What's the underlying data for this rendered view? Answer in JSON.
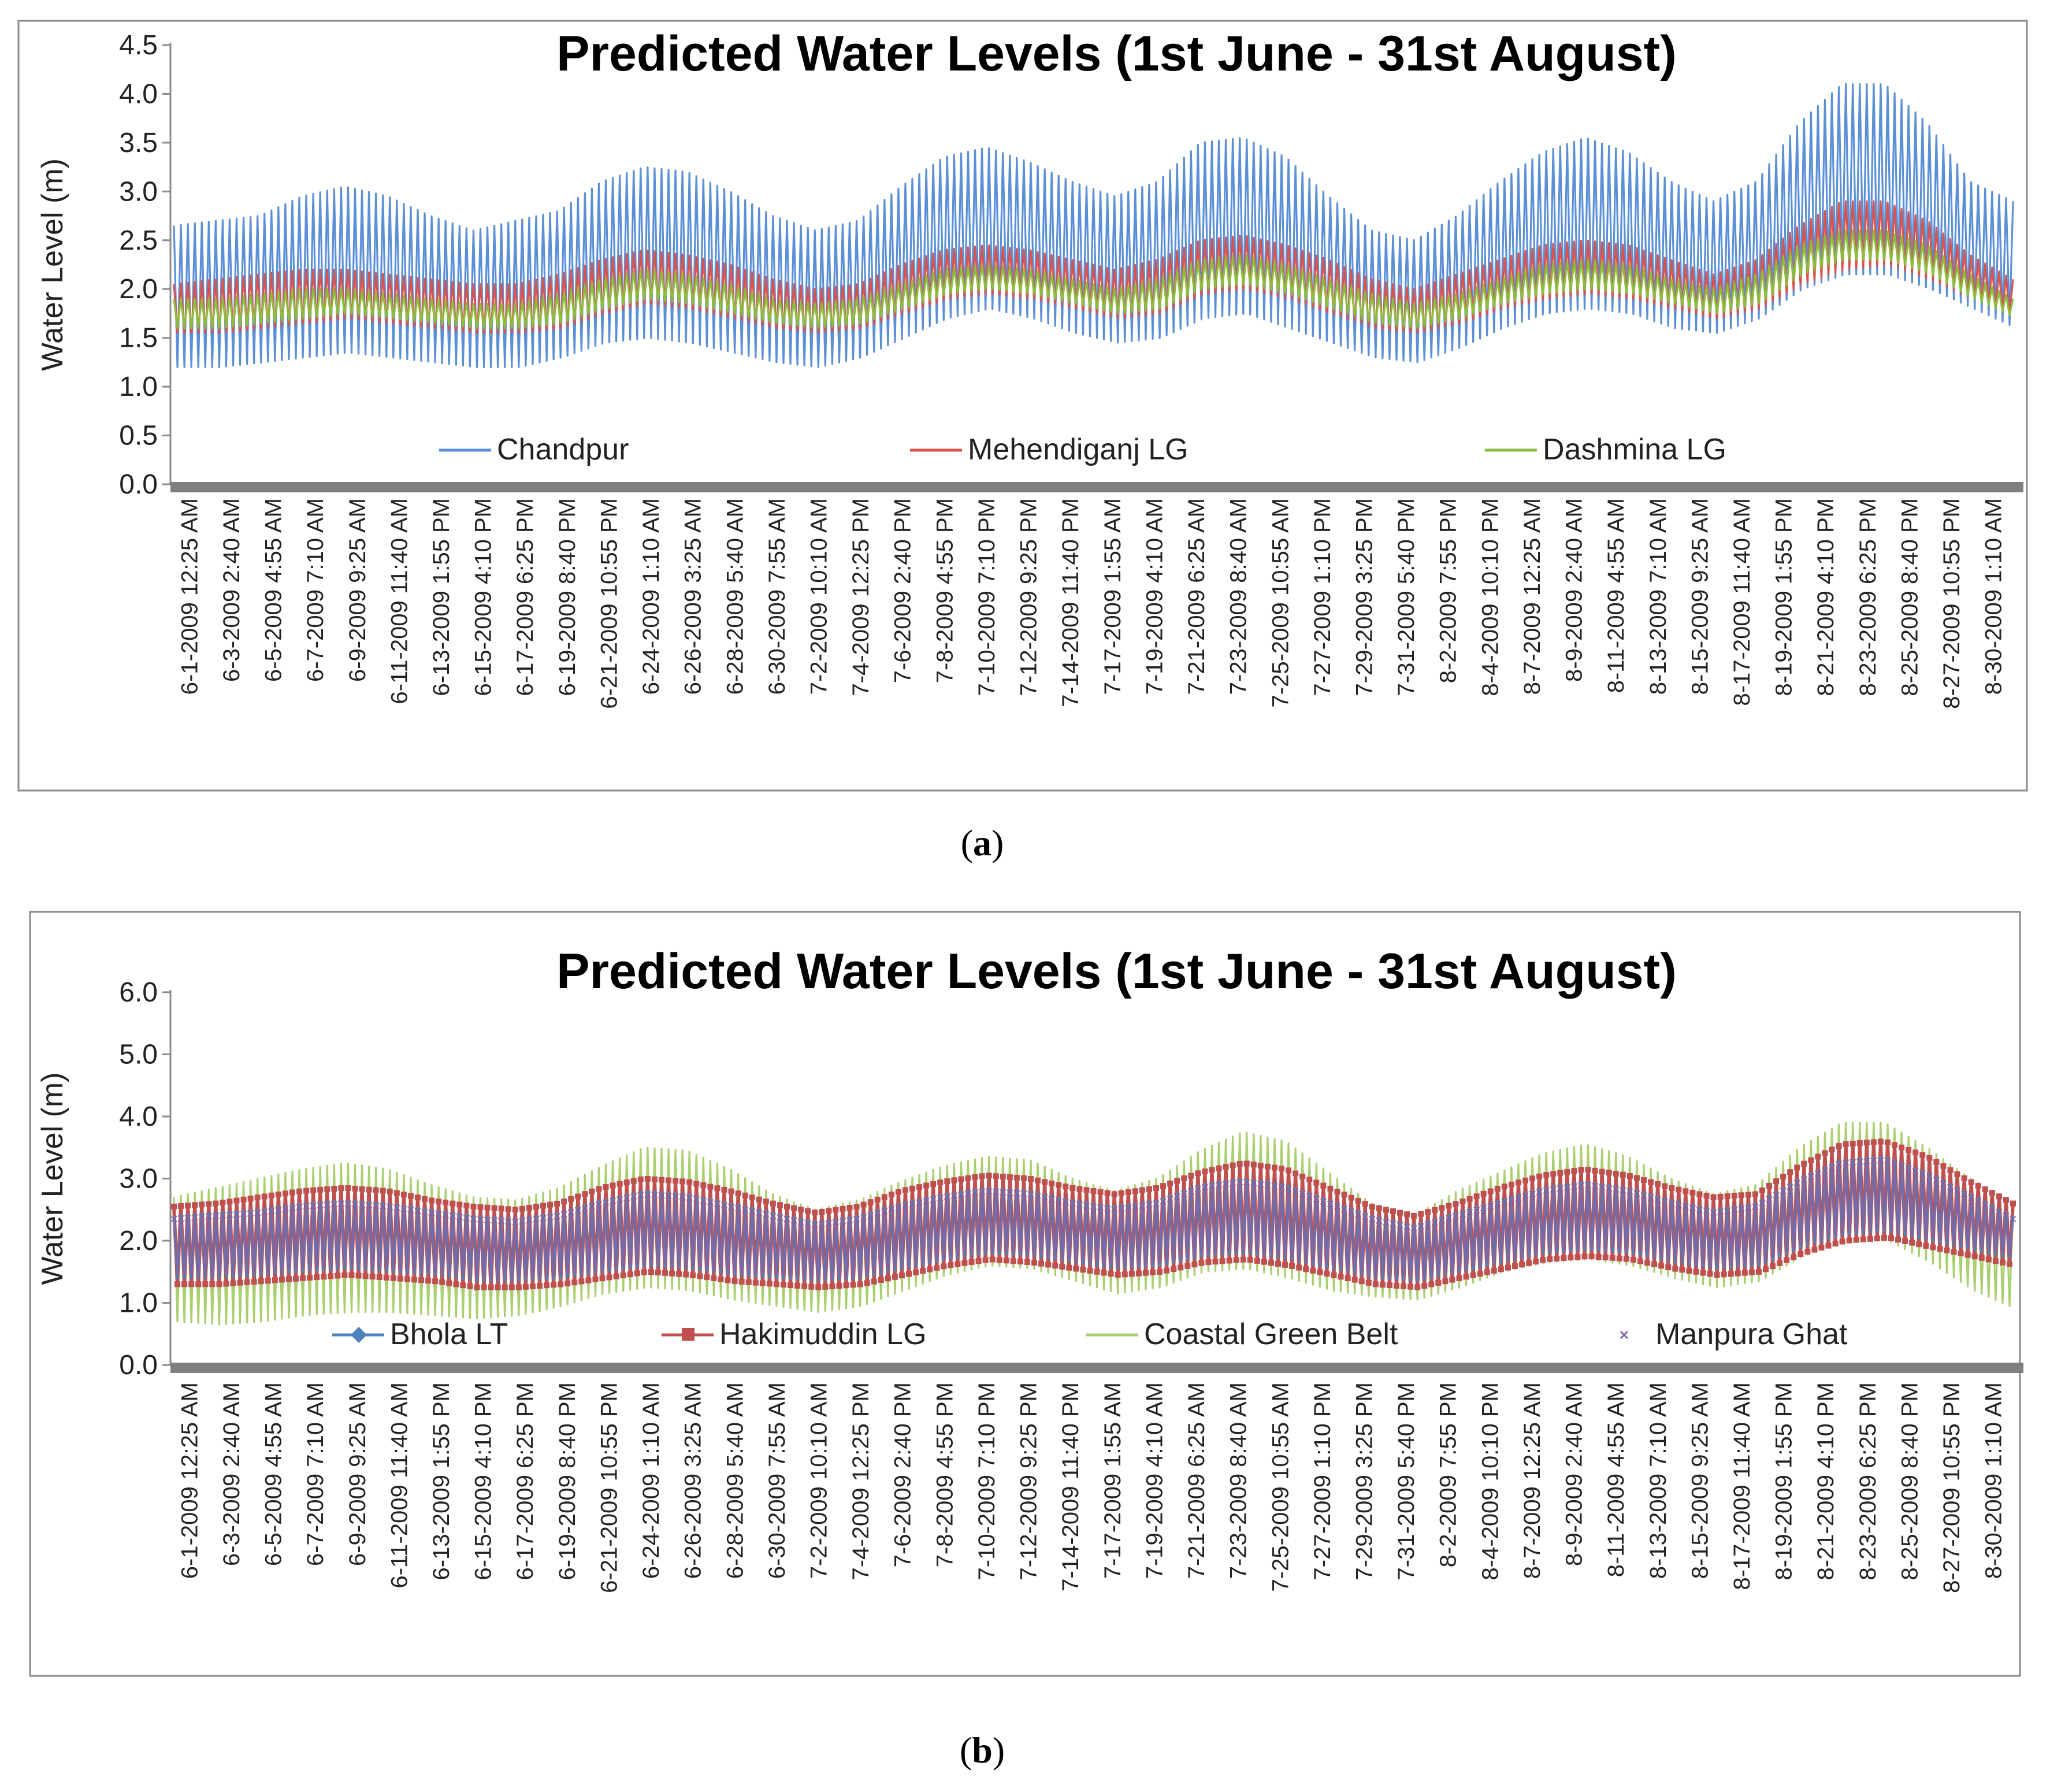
{
  "chart_data": [
    {
      "type": "line",
      "panel": "a",
      "caption_letter": "a",
      "title": "Predicted Water Levels (1st June - 31st August)",
      "ylabel": "Water Level (m)",
      "xlabel": "",
      "ylim": [
        0,
        4.5
      ],
      "yticks": [
        "0.0",
        "0.5",
        "1.0",
        "1.5",
        "2.0",
        "2.5",
        "3.0",
        "3.5",
        "4.0",
        "4.5"
      ],
      "grid": false,
      "legend_position": "bottom-inside",
      "x": [
        "6-1-2009 12:25 AM",
        "6-3-2009 2:40 AM",
        "6-5-2009 4:55 AM",
        "6-7-2009 7:10 AM",
        "6-9-2009 9:25 AM",
        "6-11-2009 11:40 AM",
        "6-13-2009 1:55 PM",
        "6-15-2009 4:10 PM",
        "6-17-2009 6:25 PM",
        "6-19-2009 8:40 PM",
        "6-21-2009 10:55 PM",
        "6-24-2009 1:10 AM",
        "6-26-2009 3:25 AM",
        "6-28-2009 5:40 AM",
        "6-30-2009 7:55 AM",
        "7-2-2009 10:10 AM",
        "7-4-2009 12:25 PM",
        "7-6-2009 2:40 PM",
        "7-8-2009 4:55 PM",
        "7-10-2009 7:10 PM",
        "7-12-2009 9:25 PM",
        "7-14-2009 11:40 PM",
        "7-17-2009 1:55 AM",
        "7-19-2009 4:10 AM",
        "7-21-2009 6:25 AM",
        "7-23-2009 8:40 AM",
        "7-25-2009 10:55 AM",
        "7-27-2009 1:10 PM",
        "7-29-2009 3:25 PM",
        "7-31-2009 5:40 PM",
        "8-2-2009 7:55 PM",
        "8-4-2009 10:10 PM",
        "8-7-2009 12:25 AM",
        "8-9-2009 2:40 AM",
        "8-11-2009 4:55 AM",
        "8-13-2009 7:10 AM",
        "8-15-2009 9:25 AM",
        "8-17-2009 11:40 AM",
        "8-19-2009 1:55 PM",
        "8-21-2009 4:10 PM",
        "8-23-2009 6:25 PM",
        "8-25-2009 8:40 PM",
        "8-27-2009 10:55 PM",
        "8-30-2009 1:10 AM"
      ],
      "series": [
        {
          "name": "Chandpur",
          "color": "#5b8fd6",
          "style": "line",
          "max": [
            2.65,
            2.7,
            2.75,
            2.95,
            3.05,
            2.95,
            2.75,
            2.6,
            2.7,
            2.8,
            3.1,
            3.25,
            3.2,
            3.0,
            2.75,
            2.6,
            2.7,
            3.05,
            3.35,
            3.45,
            3.3,
            3.1,
            2.95,
            3.1,
            3.5,
            3.55,
            3.35,
            2.95,
            2.6,
            2.5,
            2.75,
            3.1,
            3.4,
            3.55,
            3.4,
            3.1,
            2.9,
            3.1,
            3.7,
            4.1,
            4.1,
            3.7,
            3.1,
            2.9
          ],
          "min": [
            1.2,
            1.2,
            1.25,
            1.3,
            1.35,
            1.3,
            1.25,
            1.2,
            1.2,
            1.3,
            1.45,
            1.5,
            1.45,
            1.35,
            1.25,
            1.2,
            1.3,
            1.5,
            1.7,
            1.8,
            1.7,
            1.55,
            1.45,
            1.5,
            1.7,
            1.75,
            1.6,
            1.45,
            1.3,
            1.25,
            1.4,
            1.6,
            1.75,
            1.8,
            1.75,
            1.6,
            1.55,
            1.7,
            2.0,
            2.15,
            2.15,
            2.0,
            1.8,
            1.6
          ]
        },
        {
          "name": "Mehendiganj LG",
          "color": "#d9534f",
          "style": "line",
          "max": [
            2.05,
            2.1,
            2.15,
            2.2,
            2.2,
            2.15,
            2.1,
            2.05,
            2.05,
            2.15,
            2.3,
            2.4,
            2.35,
            2.25,
            2.1,
            2.0,
            2.05,
            2.25,
            2.4,
            2.45,
            2.4,
            2.3,
            2.2,
            2.3,
            2.5,
            2.55,
            2.45,
            2.3,
            2.1,
            2.0,
            2.15,
            2.3,
            2.45,
            2.5,
            2.45,
            2.3,
            2.15,
            2.3,
            2.65,
            2.9,
            2.9,
            2.7,
            2.35,
            2.1
          ],
          "min": [
            1.55,
            1.55,
            1.6,
            1.65,
            1.7,
            1.65,
            1.6,
            1.55,
            1.55,
            1.6,
            1.75,
            1.85,
            1.8,
            1.7,
            1.6,
            1.55,
            1.6,
            1.75,
            1.9,
            1.95,
            1.9,
            1.8,
            1.7,
            1.75,
            1.95,
            2.0,
            1.9,
            1.75,
            1.6,
            1.55,
            1.65,
            1.8,
            1.9,
            1.95,
            1.9,
            1.8,
            1.7,
            1.8,
            2.05,
            2.2,
            2.25,
            2.1,
            1.9,
            1.7
          ]
        },
        {
          "name": "Dashmina LG",
          "color": "#8cbd3f",
          "style": "line",
          "max": [
            1.9,
            1.9,
            1.95,
            2.0,
            2.0,
            1.95,
            1.9,
            1.85,
            1.85,
            1.95,
            2.1,
            2.2,
            2.15,
            2.05,
            1.9,
            1.85,
            1.9,
            2.05,
            2.2,
            2.25,
            2.2,
            2.1,
            2.0,
            2.1,
            2.3,
            2.35,
            2.25,
            2.1,
            1.95,
            1.85,
            1.95,
            2.1,
            2.25,
            2.3,
            2.25,
            2.1,
            2.0,
            2.15,
            2.45,
            2.6,
            2.6,
            2.45,
            2.15,
            1.9
          ],
          "min": [
            1.6,
            1.6,
            1.65,
            1.7,
            1.75,
            1.7,
            1.65,
            1.6,
            1.6,
            1.65,
            1.8,
            1.9,
            1.85,
            1.75,
            1.65,
            1.6,
            1.65,
            1.8,
            1.95,
            2.0,
            1.95,
            1.85,
            1.75,
            1.8,
            2.0,
            2.05,
            1.95,
            1.8,
            1.65,
            1.6,
            1.7,
            1.85,
            1.95,
            2.0,
            1.95,
            1.85,
            1.75,
            1.85,
            2.15,
            2.3,
            2.3,
            2.15,
            1.9,
            1.7
          ]
        }
      ]
    },
    {
      "type": "line",
      "panel": "b",
      "caption_letter": "b",
      "title": "Predicted Water Levels (1st June - 31st August)",
      "ylabel": "Water Level (m)",
      "xlabel": "",
      "ylim": [
        0,
        6
      ],
      "yticks": [
        "0.0",
        "1.0",
        "2.0",
        "3.0",
        "4.0",
        "5.0",
        "6.0"
      ],
      "grid": false,
      "legend_position": "bottom-inside",
      "x": [
        "6-1-2009 12:25 AM",
        "6-3-2009 2:40 AM",
        "6-5-2009 4:55 AM",
        "6-7-2009 7:10 AM",
        "6-9-2009 9:25 AM",
        "6-11-2009 11:40 AM",
        "6-13-2009 1:55 PM",
        "6-15-2009 4:10 PM",
        "6-17-2009 6:25 PM",
        "6-19-2009 8:40 PM",
        "6-21-2009 10:55 PM",
        "6-24-2009 1:10 AM",
        "6-26-2009 3:25 AM",
        "6-28-2009 5:40 AM",
        "6-30-2009 7:55 AM",
        "7-2-2009 10:10 AM",
        "7-4-2009 12:25 PM",
        "7-6-2009 2:40 PM",
        "7-8-2009 4:55 PM",
        "7-10-2009 7:10 PM",
        "7-12-2009 9:25 PM",
        "7-14-2009 11:40 PM",
        "7-17-2009 1:55 AM",
        "7-19-2009 4:10 AM",
        "7-21-2009 6:25 AM",
        "7-23-2009 8:40 AM",
        "7-25-2009 10:55 AM",
        "7-27-2009 1:10 PM",
        "7-29-2009 3:25 PM",
        "7-31-2009 5:40 PM",
        "8-2-2009 7:55 PM",
        "8-4-2009 10:10 PM",
        "8-7-2009 12:25 AM",
        "8-9-2009 2:40 AM",
        "8-11-2009 4:55 AM",
        "8-13-2009 7:10 AM",
        "8-15-2009 9:25 AM",
        "8-17-2009 11:40 AM",
        "8-19-2009 1:55 PM",
        "8-21-2009 4:10 PM",
        "8-23-2009 6:25 PM",
        "8-25-2009 8:40 PM",
        "8-27-2009 10:55 PM",
        "8-30-2009 1:10 AM"
      ],
      "series": [
        {
          "name": "Coastal Green Belt",
          "color": "#a9cf6f",
          "style": "line",
          "max": [
            2.7,
            2.85,
            3.0,
            3.15,
            3.25,
            3.15,
            2.9,
            2.7,
            2.65,
            2.85,
            3.2,
            3.5,
            3.45,
            3.15,
            2.75,
            2.5,
            2.65,
            2.95,
            3.2,
            3.35,
            3.3,
            3.0,
            2.8,
            3.0,
            3.45,
            3.75,
            3.6,
            3.1,
            2.6,
            2.4,
            2.8,
            3.1,
            3.4,
            3.55,
            3.35,
            3.0,
            2.75,
            2.9,
            3.5,
            3.9,
            3.9,
            3.5,
            3.0,
            2.6
          ],
          "min": [
            0.7,
            0.65,
            0.7,
            0.8,
            0.85,
            0.85,
            0.8,
            0.75,
            0.8,
            0.95,
            1.15,
            1.25,
            1.2,
            1.05,
            0.95,
            0.85,
            0.95,
            1.2,
            1.45,
            1.6,
            1.55,
            1.35,
            1.15,
            1.25,
            1.5,
            1.55,
            1.4,
            1.2,
            1.1,
            1.05,
            1.25,
            1.5,
            1.65,
            1.7,
            1.6,
            1.4,
            1.25,
            1.35,
            1.75,
            2.0,
            2.0,
            1.65,
            1.2,
            0.9
          ]
        },
        {
          "name": "Hakimuddin LG",
          "color": "#c0504d",
          "style": "line-square",
          "max": [
            2.55,
            2.6,
            2.7,
            2.8,
            2.85,
            2.8,
            2.65,
            2.55,
            2.5,
            2.6,
            2.85,
            3.0,
            2.95,
            2.8,
            2.6,
            2.45,
            2.55,
            2.8,
            2.95,
            3.05,
            3.0,
            2.85,
            2.75,
            2.85,
            3.1,
            3.25,
            3.15,
            2.85,
            2.55,
            2.4,
            2.6,
            2.85,
            3.05,
            3.15,
            3.05,
            2.85,
            2.7,
            2.75,
            3.2,
            3.55,
            3.6,
            3.35,
            2.95,
            2.6
          ],
          "min": [
            1.3,
            1.3,
            1.35,
            1.4,
            1.45,
            1.4,
            1.35,
            1.25,
            1.25,
            1.3,
            1.4,
            1.5,
            1.45,
            1.35,
            1.3,
            1.25,
            1.3,
            1.45,
            1.6,
            1.7,
            1.65,
            1.55,
            1.45,
            1.5,
            1.65,
            1.7,
            1.6,
            1.45,
            1.3,
            1.25,
            1.4,
            1.55,
            1.7,
            1.75,
            1.7,
            1.55,
            1.45,
            1.5,
            1.8,
            2.0,
            2.05,
            1.9,
            1.75,
            1.6
          ]
        },
        {
          "name": "Bhola LT",
          "color": "#4f81bd",
          "style": "line-diamond",
          "max": [
            2.4,
            2.45,
            2.5,
            2.6,
            2.65,
            2.6,
            2.5,
            2.4,
            2.35,
            2.45,
            2.65,
            2.8,
            2.75,
            2.6,
            2.45,
            2.3,
            2.4,
            2.6,
            2.75,
            2.85,
            2.8,
            2.65,
            2.55,
            2.65,
            2.9,
            3.0,
            2.9,
            2.65,
            2.4,
            2.25,
            2.45,
            2.65,
            2.85,
            2.95,
            2.85,
            2.65,
            2.5,
            2.6,
            3.0,
            3.3,
            3.35,
            3.1,
            2.75,
            2.4
          ],
          "min": [
            1.4,
            1.4,
            1.45,
            1.5,
            1.55,
            1.5,
            1.45,
            1.35,
            1.35,
            1.4,
            1.5,
            1.6,
            1.55,
            1.45,
            1.4,
            1.35,
            1.4,
            1.55,
            1.7,
            1.8,
            1.75,
            1.65,
            1.55,
            1.6,
            1.75,
            1.8,
            1.7,
            1.55,
            1.4,
            1.35,
            1.5,
            1.65,
            1.8,
            1.85,
            1.8,
            1.65,
            1.55,
            1.6,
            1.9,
            2.1,
            2.15,
            2.0,
            1.85,
            1.7
          ]
        },
        {
          "name": "Manpura Ghat",
          "color": "#8064a2",
          "style": "markers-x",
          "max": [
            2.35,
            2.4,
            2.45,
            2.55,
            2.6,
            2.55,
            2.45,
            2.35,
            2.3,
            2.4,
            2.6,
            2.75,
            2.7,
            2.55,
            2.4,
            2.25,
            2.35,
            2.55,
            2.7,
            2.8,
            2.75,
            2.6,
            2.5,
            2.6,
            2.85,
            2.95,
            2.85,
            2.6,
            2.35,
            2.2,
            2.4,
            2.6,
            2.8,
            2.9,
            2.8,
            2.6,
            2.45,
            2.55,
            2.95,
            3.25,
            3.3,
            3.05,
            2.7,
            2.35
          ],
          "min": [
            1.45,
            1.45,
            1.5,
            1.55,
            1.6,
            1.55,
            1.5,
            1.4,
            1.4,
            1.45,
            1.55,
            1.65,
            1.6,
            1.5,
            1.45,
            1.4,
            1.45,
            1.6,
            1.75,
            1.85,
            1.8,
            1.7,
            1.6,
            1.65,
            1.8,
            1.85,
            1.75,
            1.6,
            1.45,
            1.4,
            1.55,
            1.7,
            1.85,
            1.9,
            1.85,
            1.7,
            1.6,
            1.65,
            1.95,
            2.15,
            2.2,
            2.05,
            1.9,
            1.75
          ]
        }
      ]
    }
  ]
}
